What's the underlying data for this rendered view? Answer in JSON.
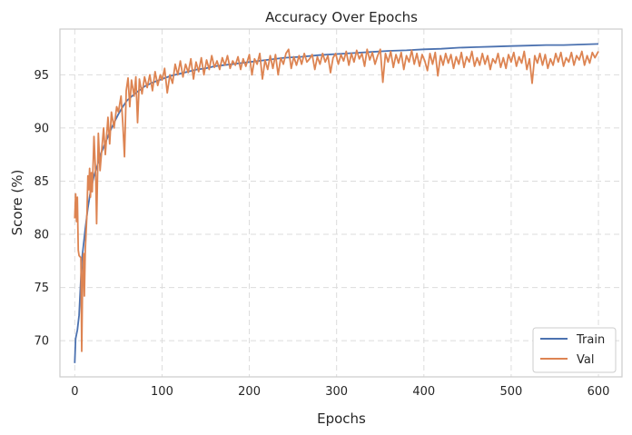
{
  "chart_data": {
    "type": "line",
    "title": "Accuracy Over Epochs",
    "xlabel": "Epochs",
    "ylabel": "Score (%)",
    "xlim": [
      -17,
      627
    ],
    "ylim": [
      66.6,
      99.3
    ],
    "x_ticks": [
      0,
      100,
      200,
      300,
      400,
      500,
      600
    ],
    "y_ticks": [
      70,
      75,
      80,
      85,
      90,
      95
    ],
    "grid": true,
    "legend_position": "lower-right",
    "series": [
      {
        "name": "Train",
        "color": "#4c72b0",
        "points": [
          [
            0,
            67.9
          ],
          [
            1,
            70.2
          ],
          [
            3,
            71.0
          ],
          [
            5,
            72.4
          ],
          [
            8,
            77.5
          ],
          [
            12,
            80.5
          ],
          [
            15,
            82.5
          ],
          [
            18,
            84.0
          ],
          [
            22,
            85.5
          ],
          [
            26,
            86.5
          ],
          [
            30,
            87.6
          ],
          [
            35,
            88.6
          ],
          [
            40,
            89.6
          ],
          [
            45,
            90.5
          ],
          [
            50,
            91.3
          ],
          [
            55,
            92.0
          ],
          [
            60,
            92.6
          ],
          [
            70,
            93.3
          ],
          [
            80,
            93.9
          ],
          [
            90,
            94.3
          ],
          [
            100,
            94.6
          ],
          [
            110,
            94.9
          ],
          [
            120,
            95.1
          ],
          [
            130,
            95.3
          ],
          [
            140,
            95.5
          ],
          [
            150,
            95.6
          ],
          [
            160,
            95.8
          ],
          [
            170,
            95.9
          ],
          [
            180,
            96.0
          ],
          [
            190,
            96.1
          ],
          [
            200,
            96.2
          ],
          [
            220,
            96.4
          ],
          [
            240,
            96.6
          ],
          [
            260,
            96.7
          ],
          [
            280,
            96.85
          ],
          [
            300,
            96.95
          ],
          [
            320,
            97.05
          ],
          [
            340,
            97.15
          ],
          [
            360,
            97.25
          ],
          [
            380,
            97.3
          ],
          [
            400,
            97.4
          ],
          [
            420,
            97.45
          ],
          [
            440,
            97.55
          ],
          [
            460,
            97.6
          ],
          [
            480,
            97.65
          ],
          [
            500,
            97.7
          ],
          [
            520,
            97.75
          ],
          [
            540,
            97.8
          ],
          [
            560,
            97.8
          ],
          [
            580,
            97.85
          ],
          [
            600,
            97.9
          ]
        ]
      },
      {
        "name": "Val",
        "color": "#dd8452",
        "points": [
          [
            0,
            81.5
          ],
          [
            1,
            83.8
          ],
          [
            2,
            81.2
          ],
          [
            3,
            83.5
          ],
          [
            4,
            78.5
          ],
          [
            5,
            78.0
          ],
          [
            7,
            77.8
          ],
          [
            8,
            69.0
          ],
          [
            9,
            76.0
          ],
          [
            10,
            78.2
          ],
          [
            11,
            74.2
          ],
          [
            12,
            78.5
          ],
          [
            14,
            82.0
          ],
          [
            15,
            85.5
          ],
          [
            16,
            84.2
          ],
          [
            17,
            86.2
          ],
          [
            18,
            83.5
          ],
          [
            19,
            85.8
          ],
          [
            20,
            84.0
          ],
          [
            22,
            89.2
          ],
          [
            24,
            85.5
          ],
          [
            25,
            81.0
          ],
          [
            27,
            89.5
          ],
          [
            29,
            86.0
          ],
          [
            31,
            88.0
          ],
          [
            33,
            90.0
          ],
          [
            35,
            87.5
          ],
          [
            38,
            91.0
          ],
          [
            40,
            88.5
          ],
          [
            42,
            91.5
          ],
          [
            45,
            90.0
          ],
          [
            48,
            92.0
          ],
          [
            50,
            91.5
          ],
          [
            53,
            93.0
          ],
          [
            55,
            90.5
          ],
          [
            57,
            87.3
          ],
          [
            59,
            93.5
          ],
          [
            61,
            94.7
          ],
          [
            63,
            92.0
          ],
          [
            65,
            94.5
          ],
          [
            68,
            93.0
          ],
          [
            70,
            94.8
          ],
          [
            72,
            90.5
          ],
          [
            74,
            94.6
          ],
          [
            77,
            93.2
          ],
          [
            80,
            94.8
          ],
          [
            83,
            93.8
          ],
          [
            86,
            95.0
          ],
          [
            89,
            93.5
          ],
          [
            92,
            95.3
          ],
          [
            95,
            94.0
          ],
          [
            98,
            95.0
          ],
          [
            100,
            94.5
          ],
          [
            103,
            95.6
          ],
          [
            106,
            93.3
          ],
          [
            109,
            95.0
          ],
          [
            112,
            94.2
          ],
          [
            115,
            96.0
          ],
          [
            118,
            95.0
          ],
          [
            121,
            96.3
          ],
          [
            124,
            94.8
          ],
          [
            127,
            96.0
          ],
          [
            130,
            95.2
          ],
          [
            133,
            96.5
          ],
          [
            136,
            94.6
          ],
          [
            139,
            96.2
          ],
          [
            142,
            95.3
          ],
          [
            145,
            96.6
          ],
          [
            148,
            95.0
          ],
          [
            151,
            96.4
          ],
          [
            154,
            95.5
          ],
          [
            157,
            96.8
          ],
          [
            160,
            95.7
          ],
          [
            163,
            96.3
          ],
          [
            166,
            95.5
          ],
          [
            169,
            96.6
          ],
          [
            172,
            95.9
          ],
          [
            175,
            96.8
          ],
          [
            178,
            95.6
          ],
          [
            181,
            96.3
          ],
          [
            184,
            95.9
          ],
          [
            187,
            96.7
          ],
          [
            190,
            95.5
          ],
          [
            193,
            96.5
          ],
          [
            196,
            95.8
          ],
          [
            200,
            96.9
          ],
          [
            203,
            95.0
          ],
          [
            206,
            96.5
          ],
          [
            209,
            96.0
          ],
          [
            212,
            97.0
          ],
          [
            215,
            94.6
          ],
          [
            218,
            96.4
          ],
          [
            221,
            95.5
          ],
          [
            224,
            96.8
          ],
          [
            227,
            95.6
          ],
          [
            230,
            96.9
          ],
          [
            233,
            95.0
          ],
          [
            236,
            96.6
          ],
          [
            239,
            96.0
          ],
          [
            242,
            97.0
          ],
          [
            245,
            97.4
          ],
          [
            248,
            95.6
          ],
          [
            251,
            96.7
          ],
          [
            254,
            95.9
          ],
          [
            257,
            96.8
          ],
          [
            260,
            96.0
          ],
          [
            263,
            97.0
          ],
          [
            266,
            96.2
          ],
          [
            269,
            96.5
          ],
          [
            272,
            96.9
          ],
          [
            275,
            95.5
          ],
          [
            278,
            96.7
          ],
          [
            281,
            96.0
          ],
          [
            284,
            97.0
          ],
          [
            287,
            96.2
          ],
          [
            290,
            96.8
          ],
          [
            293,
            95.2
          ],
          [
            296,
            96.6
          ],
          [
            299,
            97.0
          ],
          [
            302,
            96.0
          ],
          [
            305,
            96.9
          ],
          [
            308,
            96.3
          ],
          [
            311,
            97.2
          ],
          [
            314,
            95.9
          ],
          [
            317,
            97.0
          ],
          [
            320,
            96.2
          ],
          [
            323,
            97.3
          ],
          [
            326,
            96.5
          ],
          [
            329,
            97.0
          ],
          [
            332,
            95.8
          ],
          [
            335,
            97.4
          ],
          [
            338,
            96.4
          ],
          [
            341,
            97.1
          ],
          [
            344,
            96.0
          ],
          [
            347,
            96.8
          ],
          [
            350,
            97.4
          ],
          [
            353,
            94.3
          ],
          [
            356,
            97.0
          ],
          [
            359,
            96.2
          ],
          [
            362,
            97.2
          ],
          [
            365,
            95.7
          ],
          [
            368,
            96.9
          ],
          [
            371,
            96.1
          ],
          [
            374,
            97.1
          ],
          [
            377,
            95.5
          ],
          [
            380,
            96.8
          ],
          [
            383,
            96.2
          ],
          [
            386,
            97.3
          ],
          [
            389,
            96.0
          ],
          [
            392,
            97.0
          ],
          [
            395,
            95.8
          ],
          [
            398,
            96.9
          ],
          [
            401,
            96.3
          ],
          [
            404,
            95.4
          ],
          [
            407,
            97.0
          ],
          [
            410,
            96.0
          ],
          [
            413,
            97.1
          ],
          [
            416,
            94.9
          ],
          [
            419,
            96.8
          ],
          [
            422,
            95.9
          ],
          [
            425,
            97.0
          ],
          [
            428,
            96.1
          ],
          [
            431,
            96.9
          ],
          [
            434,
            95.6
          ],
          [
            437,
            96.7
          ],
          [
            440,
            96.0
          ],
          [
            443,
            97.1
          ],
          [
            446,
            95.7
          ],
          [
            449,
            96.7
          ],
          [
            452,
            96.2
          ],
          [
            455,
            97.2
          ],
          [
            458,
            95.8
          ],
          [
            461,
            96.6
          ],
          [
            464,
            95.9
          ],
          [
            467,
            97.0
          ],
          [
            470,
            96.0
          ],
          [
            473,
            96.8
          ],
          [
            476,
            95.5
          ],
          [
            479,
            96.5
          ],
          [
            482,
            96.1
          ],
          [
            485,
            97.0
          ],
          [
            488,
            95.7
          ],
          [
            491,
            96.6
          ],
          [
            494,
            95.6
          ],
          [
            497,
            96.9
          ],
          [
            500,
            96.2
          ],
          [
            503,
            97.1
          ],
          [
            506,
            95.8
          ],
          [
            509,
            96.7
          ],
          [
            512,
            96.1
          ],
          [
            515,
            97.2
          ],
          [
            518,
            95.5
          ],
          [
            521,
            96.5
          ],
          [
            524,
            94.2
          ],
          [
            527,
            96.8
          ],
          [
            530,
            96.1
          ],
          [
            533,
            97.0
          ],
          [
            536,
            95.9
          ],
          [
            539,
            96.9
          ],
          [
            542,
            95.6
          ],
          [
            545,
            96.5
          ],
          [
            548,
            95.9
          ],
          [
            551,
            97.0
          ],
          [
            554,
            96.2
          ],
          [
            557,
            97.1
          ],
          [
            560,
            95.8
          ],
          [
            563,
            96.6
          ],
          [
            566,
            96.2
          ],
          [
            569,
            97.1
          ],
          [
            572,
            95.9
          ],
          [
            575,
            96.8
          ],
          [
            578,
            96.4
          ],
          [
            581,
            97.2
          ],
          [
            584,
            95.9
          ],
          [
            587,
            96.8
          ],
          [
            590,
            96.1
          ],
          [
            593,
            97.1
          ],
          [
            596,
            96.6
          ],
          [
            600,
            97.2
          ]
        ]
      }
    ]
  }
}
